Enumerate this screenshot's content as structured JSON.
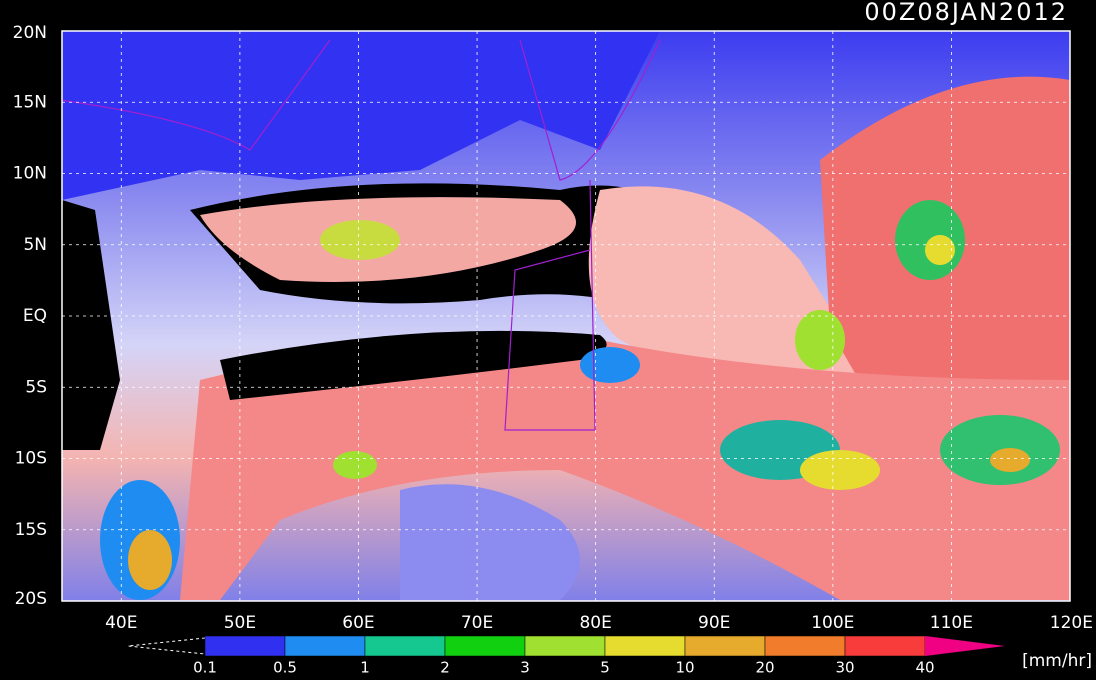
{
  "title": "00Z08JAN2012",
  "lat_labels": [
    "20N",
    "15N",
    "10N",
    "5N",
    "EQ",
    "5S",
    "10S",
    "15S",
    "20S"
  ],
  "lon_labels": [
    "40E",
    "50E",
    "60E",
    "70E",
    "80E",
    "90E",
    "100E",
    "110E",
    "120E"
  ],
  "colorbar": {
    "levels": [
      0.1,
      0.5,
      1,
      2,
      3,
      5,
      10,
      20,
      30,
      40
    ],
    "colors": [
      "#3030f0",
      "#1e8cf0",
      "#14c890",
      "#10d010",
      "#a0e030",
      "#e6dc30",
      "#e6aa2c",
      "#f07c2c",
      "#f83c3c",
      "#f00082"
    ],
    "units": "[mm/hr]"
  }
}
